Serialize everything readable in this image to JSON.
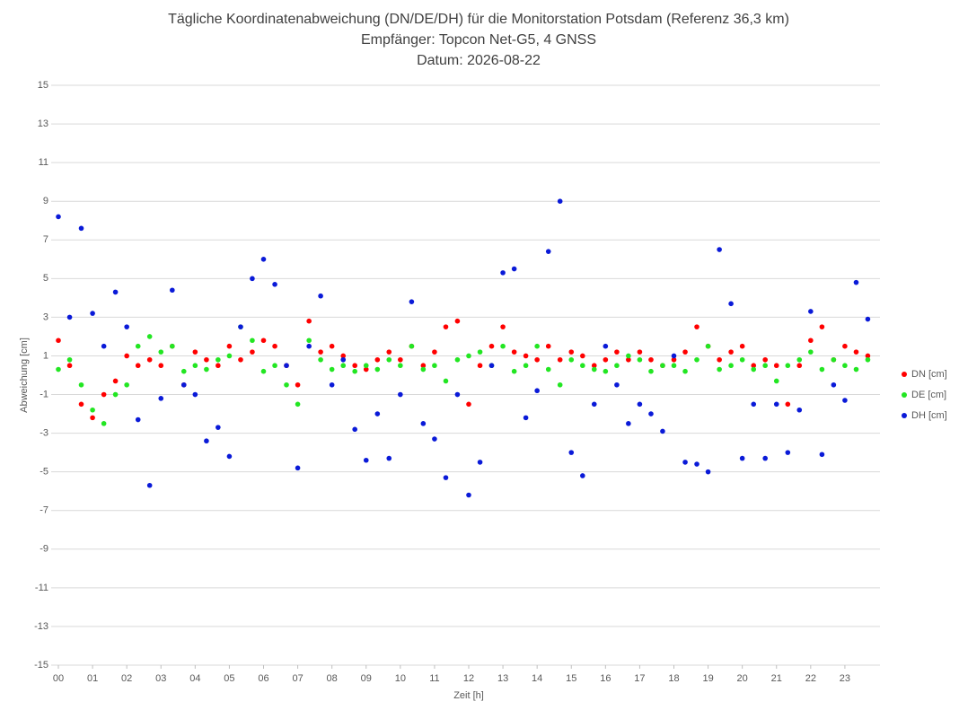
{
  "chart_data": {
    "type": "scatter",
    "title": "Tägliche Koordinatenabweichung (DN/DE/DH) für die Monitorstation Potsdam (Referenz 36,3 km)",
    "subtitle": "Empfänger: Topcon Net-G5, 4 GNSS",
    "date_label": "Datum: 2026-08-22",
    "x_label": "Zeit [h]",
    "y_label": "Abweichung [cm]",
    "xlim": [
      0,
      24
    ],
    "ylim": [
      -15,
      15
    ],
    "xticks": [
      {
        "value": 0,
        "label": "00"
      },
      {
        "value": 1,
        "label": "01"
      },
      {
        "value": 2,
        "label": "02"
      },
      {
        "value": 3,
        "label": "03"
      },
      {
        "value": 4,
        "label": "04"
      },
      {
        "value": 5,
        "label": "05"
      },
      {
        "value": 6,
        "label": "06"
      },
      {
        "value": 7,
        "label": "07"
      },
      {
        "value": 8,
        "label": "08"
      },
      {
        "value": 9,
        "label": "09"
      },
      10,
      11,
      12,
      13,
      14,
      15,
      16,
      17,
      18,
      19,
      20,
      21,
      22,
      23
    ],
    "yticks": [
      -15,
      -13,
      -11,
      -9,
      -7,
      -5,
      -3,
      -1,
      1,
      3,
      5,
      7,
      9,
      11,
      13,
      15
    ],
    "grid": true,
    "legend": "right",
    "x": [
      0,
      0.33,
      0.67,
      1,
      1.33,
      1.67,
      2,
      2.33,
      2.67,
      3,
      3.33,
      3.67,
      4,
      4.33,
      4.67,
      5,
      5.33,
      5.67,
      6,
      6.33,
      6.67,
      7,
      7.33,
      7.67,
      8,
      8.33,
      8.67,
      9,
      9.33,
      9.67,
      10,
      10.33,
      10.67,
      11,
      11.33,
      11.67,
      12,
      12.33,
      12.67,
      13,
      13.33,
      13.67,
      14,
      14.33,
      14.67,
      15,
      15.33,
      15.67,
      16,
      16.33,
      16.67,
      17,
      17.33,
      17.67,
      18,
      18.33,
      18.67,
      19,
      19.33,
      19.67,
      20,
      20.33,
      20.67,
      21,
      21.33,
      21.67,
      22,
      22.33,
      22.67,
      23,
      23.33,
      23.67
    ],
    "series": [
      {
        "name": "DN [cm]",
        "color": "#ff0000",
        "values": [
          1.8,
          0.5,
          -1.5,
          -2.2,
          -1,
          -0.3,
          1,
          0.5,
          0.8,
          0.5,
          1.5,
          -0.5,
          1.2,
          0.8,
          0.5,
          1.5,
          0.8,
          1.2,
          1.8,
          1.5,
          0.5,
          -0.5,
          2.8,
          1.2,
          1.5,
          1,
          0.5,
          0.3,
          0.8,
          1.2,
          0.8,
          1.5,
          0.5,
          1.2,
          2.5,
          2.8,
          -1.5,
          0.5,
          1.5,
          2.5,
          1.2,
          1,
          0.8,
          1.5,
          0.8,
          1.2,
          1,
          0.5,
          0.8,
          1.2,
          0.8,
          1.2,
          0.8,
          0.5,
          0.8,
          1.2,
          2.5,
          1.5,
          0.8,
          1.2,
          1.5,
          0.5,
          0.8,
          0.5,
          -1.5,
          0.5,
          1.8,
          2.5,
          0.8,
          1.5,
          1.2,
          1
        ]
      },
      {
        "name": "DE [cm]",
        "color": "#22e622",
        "values": [
          0.3,
          0.8,
          -0.5,
          -1.8,
          -2.5,
          -1,
          -0.5,
          1.5,
          2,
          1.2,
          1.5,
          0.2,
          0.5,
          0.3,
          0.8,
          1,
          2.5,
          1.8,
          0.2,
          0.5,
          -0.5,
          -1.5,
          1.8,
          0.8,
          0.3,
          0.5,
          0.2,
          0.5,
          0.3,
          0.8,
          0.5,
          1.5,
          0.3,
          0.5,
          -0.3,
          0.8,
          1,
          1.2,
          0.5,
          1.5,
          0.2,
          0.5,
          1.5,
          0.3,
          -0.5,
          0.8,
          0.5,
          0.3,
          0.2,
          0.5,
          1,
          0.8,
          0.2,
          0.5,
          0.5,
          0.2,
          0.8,
          1.5,
          0.3,
          0.5,
          0.8,
          0.3,
          0.5,
          -0.3,
          0.5,
          0.8,
          1.2,
          0.3,
          0.8,
          0.5,
          0.3,
          0.8
        ]
      },
      {
        "name": "DH [cm]",
        "color": "#0a1ad8",
        "values": [
          8.2,
          3,
          7.6,
          3.2,
          1.5,
          4.3,
          2.5,
          -2.3,
          -5.7,
          -1.2,
          4.4,
          -0.5,
          -1,
          -3.4,
          -2.7,
          -4.2,
          2.5,
          5,
          6,
          4.7,
          0.5,
          -4.8,
          1.5,
          4.1,
          -0.5,
          0.8,
          -2.8,
          -4.4,
          -2,
          -4.3,
          -1,
          3.8,
          -2.5,
          -3.3,
          -5.3,
          -1,
          -6.2,
          -4.5,
          0.5,
          5.3,
          5.5,
          -2.2,
          -0.8,
          6.4,
          9,
          -4,
          -5.2,
          -1.5,
          1.5,
          -0.5,
          -2.5,
          -1.5,
          -2,
          -2.9,
          1,
          -4.5,
          -4.6,
          -5,
          6.5,
          3.7,
          -4.3,
          -1.5,
          -4.3,
          -1.5,
          -4,
          -1.8,
          3.3,
          -4.1,
          -0.5,
          -1.3,
          4.8,
          2.9
        ]
      }
    ]
  }
}
